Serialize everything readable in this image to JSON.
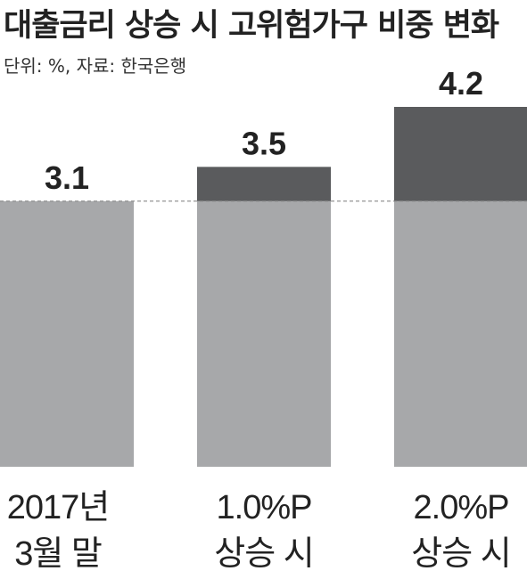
{
  "header": {
    "title": "대출금리 상승 시 고위험가구 비중 변화",
    "subtitle": "단위: %, 자료: 한국은행"
  },
  "colors": {
    "base": "#a7a8aa",
    "increase": "#5a5b5d",
    "label": "#222222",
    "dashed_line": "#888888"
  },
  "chart_data": {
    "type": "bar",
    "stacked": true,
    "title": "대출금리 상승 시 고위험가구 비중 변화",
    "unit": "%",
    "source": "한국은행",
    "categories": [
      [
        "2017년",
        "3월 말"
      ],
      [
        "1.0%P",
        "상승 시"
      ],
      [
        "2.0%P",
        "상승 시"
      ]
    ],
    "values": [
      3.1,
      3.5,
      4.2
    ],
    "value_labels": [
      "3.1",
      "3.5",
      "4.2"
    ],
    "baseline": 3.1,
    "series": [
      {
        "values": [
          3.1,
          3.1,
          3.1
        ]
      },
      {
        "values": [
          0,
          0.4,
          1.1
        ]
      }
    ],
    "ylim": [
      0,
      4.2
    ],
    "axes_visible": false,
    "grid": false,
    "reference_line": {
      "value": 3.1,
      "style": "dashed"
    }
  }
}
